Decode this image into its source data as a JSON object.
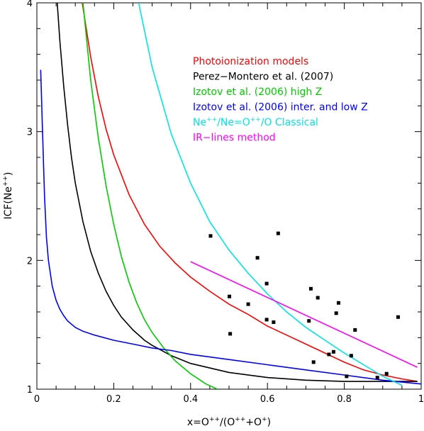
{
  "chart_data": {
    "type": "line",
    "title": "",
    "xlabel": {
      "prefix": "x=O",
      "sup1": "++",
      "mid1": "/(O",
      "sup2": "++",
      "mid2": "+O",
      "sup3": "+",
      "suffix": ")"
    },
    "ylabel": {
      "prefix": "ICF(Ne",
      "sup": "++",
      "suffix": ")"
    },
    "xlim": [
      0,
      1
    ],
    "ylim": [
      1,
      4
    ],
    "xticks": [
      0,
      0.2,
      0.4,
      0.6,
      0.8,
      1
    ],
    "xtick_labels": [
      "0",
      "0.2",
      "0.4",
      "0.6",
      "0.8",
      "1"
    ],
    "yticks": [
      1,
      2,
      3,
      4
    ],
    "ytick_labels": [
      "1",
      "2",
      "3",
      "4"
    ],
    "grid": false,
    "legend": {
      "placement": "top-right",
      "entries": [
        {
          "label": "Photoionization models",
          "color": "#ff0000"
        },
        {
          "label": "Perez−Montero et al. (2007)",
          "color": "#000000"
        },
        {
          "label": "Izotov et al. (2006) high Z",
          "color": "#00cc00"
        },
        {
          "label": "Izotov et al. (2006)  inter. and low Z",
          "color": "#0000ff"
        },
        {
          "label_parts": [
            "Ne",
            "++",
            "/Ne=O",
            "++",
            "/O  Classical"
          ],
          "color": "#00e5e5"
        },
        {
          "label": "IR−lines method",
          "color": "#ff00ff"
        }
      ]
    },
    "series": [
      {
        "color": "#ff0000",
        "x": [
          0.118,
          0.14,
          0.16,
          0.18,
          0.2,
          0.24,
          0.28,
          0.32,
          0.36,
          0.4,
          0.45,
          0.5,
          0.55,
          0.6,
          0.65,
          0.7,
          0.75,
          0.8,
          0.85,
          0.9,
          0.95,
          0.99
        ],
        "y": [
          4.0,
          3.58,
          3.27,
          3.02,
          2.82,
          2.51,
          2.28,
          2.11,
          1.98,
          1.87,
          1.76,
          1.66,
          1.58,
          1.49,
          1.42,
          1.35,
          1.28,
          1.21,
          1.15,
          1.11,
          1.08,
          1.06
        ]
      },
      {
        "color": "#000000",
        "x": [
          0.053,
          0.06,
          0.07,
          0.08,
          0.09,
          0.1,
          0.12,
          0.14,
          0.16,
          0.18,
          0.2,
          0.22,
          0.25,
          0.28,
          0.3,
          0.35,
          0.4,
          0.5,
          0.6,
          0.7,
          0.8,
          0.9,
          0.99
        ],
        "y": [
          4.0,
          3.7,
          3.35,
          3.05,
          2.8,
          2.6,
          2.3,
          2.07,
          1.9,
          1.76,
          1.65,
          1.56,
          1.46,
          1.38,
          1.34,
          1.26,
          1.2,
          1.13,
          1.09,
          1.07,
          1.06,
          1.06,
          1.06
        ]
      },
      {
        "color": "#00cc00",
        "x": [
          0.12,
          0.14,
          0.16,
          0.18,
          0.2,
          0.22,
          0.24,
          0.26,
          0.28,
          0.3,
          0.33,
          0.36,
          0.4,
          0.44,
          0.47
        ],
        "y": [
          4.0,
          3.4,
          2.95,
          2.58,
          2.28,
          2.03,
          1.83,
          1.67,
          1.54,
          1.44,
          1.32,
          1.22,
          1.12,
          1.04,
          1.0
        ]
      },
      {
        "color": "#0000ff",
        "x": [
          0.01,
          0.015,
          0.02,
          0.025,
          0.03,
          0.04,
          0.05,
          0.06,
          0.07,
          0.08,
          0.1,
          0.12,
          0.15,
          0.2,
          0.25,
          0.3,
          0.35,
          0.4,
          0.5,
          0.6,
          0.7,
          0.8,
          0.9,
          1.0
        ],
        "y": [
          3.48,
          2.98,
          2.5,
          2.18,
          2.0,
          1.8,
          1.69,
          1.62,
          1.57,
          1.53,
          1.48,
          1.45,
          1.42,
          1.38,
          1.35,
          1.32,
          1.3,
          1.27,
          1.23,
          1.19,
          1.15,
          1.11,
          1.07,
          1.04
        ]
      },
      {
        "color": "#00e5e5",
        "x": [
          0.265,
          0.3,
          0.35,
          0.4,
          0.45,
          0.5,
          0.55,
          0.6,
          0.65,
          0.7,
          0.75,
          0.8,
          0.85,
          0.9,
          0.95
        ],
        "y": [
          4.0,
          3.5,
          2.98,
          2.6,
          2.3,
          2.08,
          1.9,
          1.74,
          1.6,
          1.48,
          1.38,
          1.28,
          1.19,
          1.1,
          1.03
        ]
      },
      {
        "color": "#ff00ff",
        "x": [
          0.4,
          0.99
        ],
        "y": [
          1.99,
          1.17
        ]
      }
    ],
    "points": {
      "color": "#000000",
      "x": [
        0.452,
        0.628,
        0.574,
        0.598,
        0.501,
        0.713,
        0.731,
        0.785,
        0.55,
        0.779,
        0.598,
        0.616,
        0.708,
        0.828,
        0.94,
        0.503,
        0.772,
        0.76,
        0.818,
        0.72,
        0.806,
        0.91,
        0.886
      ],
      "y": [
        2.19,
        2.21,
        2.02,
        1.82,
        1.72,
        1.78,
        1.71,
        1.67,
        1.66,
        1.59,
        1.54,
        1.52,
        1.53,
        1.46,
        1.56,
        1.43,
        1.29,
        1.27,
        1.26,
        1.21,
        1.1,
        1.12,
        1.09
      ]
    }
  }
}
